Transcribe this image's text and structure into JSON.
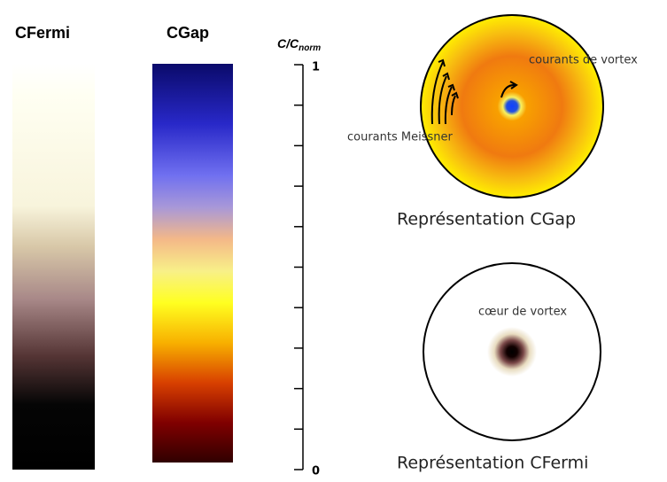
{
  "colorbars": {
    "fermi_title": "CFermi",
    "gap_title": "CGap"
  },
  "scale": {
    "label_main": "C/C",
    "label_sub": "norm",
    "top": "1",
    "bottom": "0"
  },
  "gap_panel": {
    "vortex_currents": "courants de vortex",
    "meissner_currents": "courants Meissner",
    "caption": "Représentation CGap"
  },
  "fermi_panel": {
    "core": "cœur de vortex",
    "caption": "Représentation CFermi"
  }
}
